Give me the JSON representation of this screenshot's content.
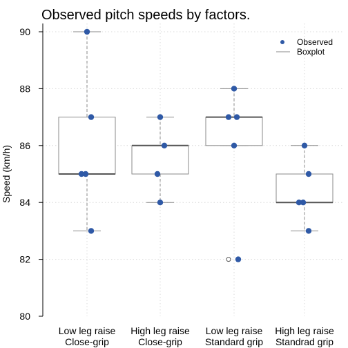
{
  "chart_data": {
    "type": "boxplot",
    "title": "Observed pitch speeds by factors.",
    "xlabel": "",
    "ylabel": "Speed (km/h)",
    "ylim": [
      80,
      90
    ],
    "yticks": [
      80,
      82,
      84,
      86,
      88,
      90
    ],
    "grid": true,
    "legend_position": "top-right",
    "legend": [
      {
        "label": "Observed",
        "marker": "point"
      },
      {
        "label": "Boxplot",
        "marker": "line"
      }
    ],
    "colors": {
      "point": "#2f59a6",
      "box": "#8a8a8a",
      "whisker": "#b0b0b0",
      "grid": "#d9d9d9"
    },
    "groups": [
      {
        "label_line1": "Low leg raise",
        "label_line2": "Close-grip",
        "box": {
          "min": 83,
          "q1": 85,
          "median": 85,
          "q3": 87,
          "max": 90,
          "outliers": []
        },
        "points": [
          90,
          87,
          85,
          85,
          83
        ]
      },
      {
        "label_line1": "High leg raise",
        "label_line2": "Close-grip",
        "box": {
          "min": 84,
          "q1": 85,
          "median": 86,
          "q3": 86,
          "max": 87,
          "outliers": []
        },
        "points": [
          87,
          86,
          85,
          84
        ]
      },
      {
        "label_line1": "Low leg raise",
        "label_line2": "Standard grip",
        "box": {
          "min": 86,
          "q1": 86,
          "median": 87,
          "q3": 87,
          "max": 88,
          "outliers": [
            82
          ]
        },
        "points": [
          88,
          87,
          87,
          86,
          82
        ]
      },
      {
        "label_line1": "High leg raise",
        "label_line2": "Standrad grip",
        "box": {
          "min": 83,
          "q1": 84,
          "median": 84,
          "q3": 85,
          "max": 86,
          "outliers": []
        },
        "points": [
          86,
          85,
          84,
          84,
          83
        ]
      }
    ]
  }
}
